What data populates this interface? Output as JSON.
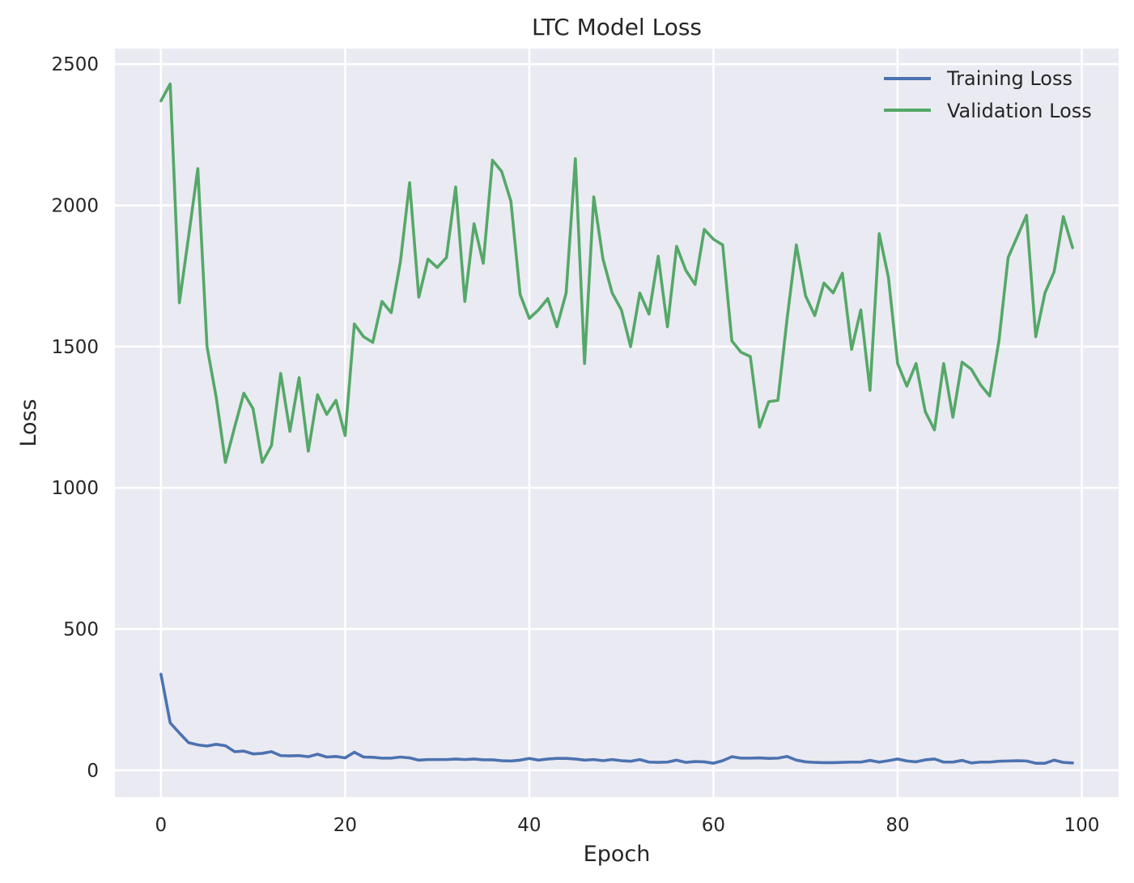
{
  "chart_data": {
    "type": "line",
    "title": "LTC Model Loss",
    "xlabel": "Epoch",
    "ylabel": "Loss",
    "xlim": [
      -5,
      104
    ],
    "ylim": [
      -95,
      2555
    ],
    "xticks": [
      0,
      20,
      40,
      60,
      80,
      100
    ],
    "yticks": [
      0,
      500,
      1000,
      1500,
      2000,
      2500
    ],
    "grid": true,
    "legend_position": "top-right",
    "colors": {
      "background": "#eaeaf2",
      "grid": "#ffffff"
    },
    "x": [
      0,
      1,
      2,
      3,
      4,
      5,
      6,
      7,
      8,
      9,
      10,
      11,
      12,
      13,
      14,
      15,
      16,
      17,
      18,
      19,
      20,
      21,
      22,
      23,
      24,
      25,
      26,
      27,
      28,
      29,
      30,
      31,
      32,
      33,
      34,
      35,
      36,
      37,
      38,
      39,
      40,
      41,
      42,
      43,
      44,
      45,
      46,
      47,
      48,
      49,
      50,
      51,
      52,
      53,
      54,
      55,
      56,
      57,
      58,
      59,
      60,
      61,
      62,
      63,
      64,
      65,
      66,
      67,
      68,
      69,
      70,
      71,
      72,
      73,
      74,
      75,
      76,
      77,
      78,
      79,
      80,
      81,
      82,
      83,
      84,
      85,
      86,
      87,
      88,
      89,
      90,
      91,
      92,
      93,
      94,
      95,
      96,
      97,
      98,
      99
    ],
    "series": [
      {
        "name": "Training Loss",
        "color": "#4c72b0",
        "values": [
          340,
          168,
          132,
          98,
          90,
          86,
          92,
          87,
          66,
          68,
          58,
          60,
          66,
          52,
          51,
          52,
          48,
          57,
          47,
          49,
          44,
          64,
          47,
          46,
          43,
          43,
          47,
          44,
          36,
          38,
          38,
          38,
          40,
          38,
          40,
          37,
          37,
          34,
          33,
          36,
          42,
          36,
          40,
          42,
          42,
          40,
          36,
          38,
          34,
          38,
          34,
          32,
          38,
          29,
          28,
          29,
          36,
          28,
          31,
          30,
          25,
          34,
          48,
          43,
          43,
          44,
          42,
          43,
          49,
          36,
          30,
          28,
          27,
          27,
          28,
          29,
          29,
          35,
          29,
          34,
          40,
          33,
          30,
          37,
          40,
          29,
          29,
          35,
          26,
          29,
          29,
          32,
          33,
          34,
          33,
          25,
          25,
          36,
          28,
          26
        ]
      },
      {
        "name": "Validation Loss",
        "color": "#55a868",
        "values": [
          2370,
          2430,
          1655,
          1890,
          2130,
          1500,
          1320,
          1090,
          1215,
          1335,
          1280,
          1090,
          1150,
          1405,
          1200,
          1390,
          1130,
          1330,
          1260,
          1310,
          1185,
          1580,
          1535,
          1515,
          1660,
          1620,
          1800,
          2080,
          1675,
          1810,
          1780,
          1815,
          2065,
          1660,
          1935,
          1795,
          2160,
          2120,
          2015,
          1685,
          1600,
          1630,
          1670,
          1570,
          1690,
          2165,
          1440,
          2030,
          1810,
          1690,
          1630,
          1500,
          1690,
          1615,
          1820,
          1570,
          1855,
          1770,
          1720,
          1915,
          1880,
          1860,
          1520,
          1480,
          1465,
          1215,
          1305,
          1310,
          1600,
          1860,
          1680,
          1610,
          1725,
          1690,
          1760,
          1490,
          1630,
          1345,
          1900,
          1745,
          1440,
          1360,
          1440,
          1270,
          1205,
          1440,
          1250,
          1445,
          1420,
          1365,
          1325,
          1520,
          1815,
          1890,
          1965,
          1535,
          1690,
          1765,
          1960,
          1850
        ]
      }
    ]
  }
}
